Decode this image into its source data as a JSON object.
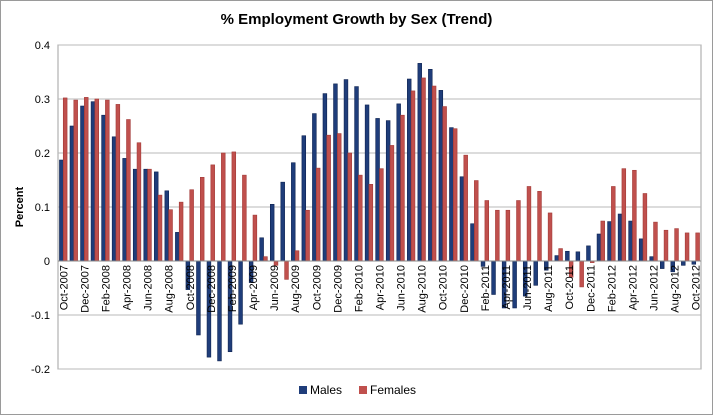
{
  "chart_data": {
    "type": "bar",
    "title": "% Employment Growth by Sex (Trend)",
    "xlabel": "",
    "ylabel": "Percent",
    "ylim": [
      -0.2,
      0.4
    ],
    "yticks": [
      "0.4",
      "0.3",
      "0.2",
      "0.1",
      "0",
      "-0.1",
      "-0.2"
    ],
    "grid": true,
    "legend": "bottom",
    "categories": [
      "Oct-2007",
      "Nov-2007",
      "Dec-2007",
      "Jan-2008",
      "Feb-2008",
      "Mar-2008",
      "Apr-2008",
      "May-2008",
      "Jun-2008",
      "Jul-2008",
      "Aug-2008",
      "Sep-2008",
      "Oct-2008",
      "Nov-2008",
      "Dec-2008",
      "Jan-2009",
      "Feb-2009",
      "Mar-2009",
      "Apr-2009",
      "May-2009",
      "Jun-2009",
      "Jul-2009",
      "Aug-2009",
      "Sep-2009",
      "Oct-2009",
      "Nov-2009",
      "Dec-2009",
      "Jan-2010",
      "Feb-2010",
      "Mar-2010",
      "Apr-2010",
      "May-2010",
      "Jun-2010",
      "Jul-2010",
      "Aug-2010",
      "Sep-2010",
      "Oct-2010",
      "Nov-2010",
      "Dec-2010",
      "Jan-2011",
      "Feb-2011",
      "Mar-2011",
      "Apr-2011",
      "May-2011",
      "Jun-2011",
      "Jul-2011",
      "Aug-2011",
      "Sep-2011",
      "Oct-2011",
      "Nov-2011",
      "Dec-2011",
      "Jan-2012",
      "Feb-2012",
      "Mar-2012",
      "Apr-2012",
      "May-2012",
      "Jun-2012",
      "Jul-2012",
      "Aug-2012",
      "Sep-2012",
      "Oct-2012"
    ],
    "series": [
      {
        "name": "Males",
        "color": "#1f3d7a",
        "values": [
          0.187,
          0.25,
          0.287,
          0.295,
          0.27,
          0.23,
          0.19,
          0.17,
          0.17,
          0.165,
          0.13,
          0.053,
          -0.053,
          -0.137,
          -0.178,
          -0.185,
          -0.168,
          -0.117,
          -0.04,
          0.043,
          0.105,
          0.146,
          0.182,
          0.232,
          0.273,
          0.31,
          0.328,
          0.336,
          0.323,
          0.289,
          0.264,
          0.26,
          0.291,
          0.337,
          0.366,
          0.355,
          0.316,
          0.247,
          0.156,
          0.069,
          -0.01,
          -0.062,
          -0.087,
          -0.087,
          -0.065,
          -0.045,
          -0.017,
          0.01,
          0.018,
          0.017,
          0.028,
          0.05,
          0.073,
          0.087,
          0.074,
          0.041,
          0.008,
          -0.014,
          -0.02,
          -0.008,
          -0.006
        ]
      },
      {
        "name": "Females",
        "color": "#c0504d",
        "values": [
          0.302,
          0.298,
          0.303,
          0.3,
          0.298,
          0.29,
          0.262,
          0.219,
          0.17,
          0.122,
          0.095,
          0.109,
          0.132,
          0.155,
          0.178,
          0.2,
          0.202,
          0.159,
          0.085,
          0.008,
          -0.008,
          -0.034,
          0.019,
          0.094,
          0.172,
          0.233,
          0.236,
          0.2,
          0.159,
          0.142,
          0.171,
          0.214,
          0.27,
          0.315,
          0.339,
          0.324,
          0.286,
          0.245,
          0.196,
          0.149,
          0.112,
          0.094,
          0.094,
          0.112,
          0.138,
          0.129,
          0.089,
          0.023,
          -0.03,
          -0.048,
          -0.003,
          0.074,
          0.138,
          0.171,
          0.168,
          0.125,
          0.072,
          0.057,
          0.06,
          0.052,
          0.052
        ]
      }
    ]
  }
}
